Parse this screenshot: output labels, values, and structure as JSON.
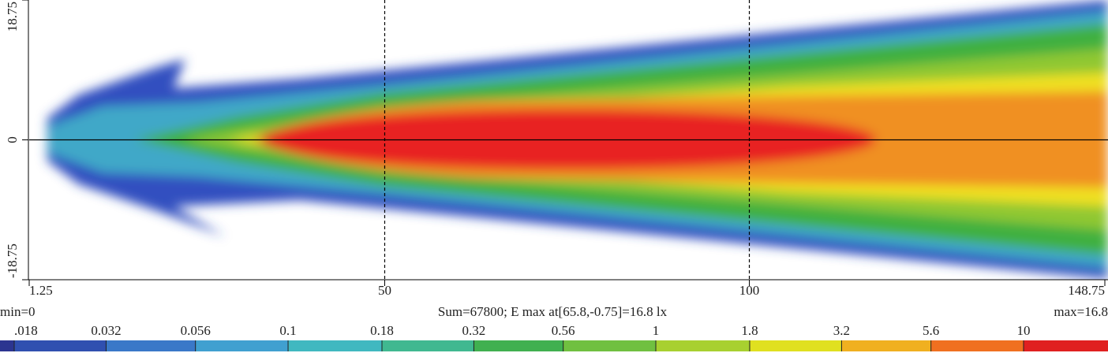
{
  "chart_data": {
    "type": "heatmap",
    "xlim": [
      1.25,
      148.75
    ],
    "xticks": [
      1.25,
      50,
      100,
      148.75
    ],
    "ylim": [
      -18.75,
      18.75
    ],
    "yticks": [
      18.75,
      0,
      -18.75
    ],
    "grid": true,
    "min_label": "min=0",
    "summary": "Sum=67800; E max at[65.8,-0.75]=16.8 lx",
    "max_label": "max=16.8",
    "colorbar": {
      "scale": "log",
      "ticks": [
        {
          "value": 0.018,
          "label": ".018"
        },
        0.032,
        0.056,
        0.1,
        0.18,
        0.32,
        0.56,
        1,
        1.8,
        3.2,
        5.6,
        10
      ],
      "colors": [
        "#2c3590",
        "#3050b0",
        "#3a78c8",
        "#40a0d0",
        "#40b8c0",
        "#40b890",
        "#40b050",
        "#70c040",
        "#a8d030",
        "#e0e020",
        "#f0b020",
        "#f07020",
        "#e02020"
      ]
    }
  }
}
